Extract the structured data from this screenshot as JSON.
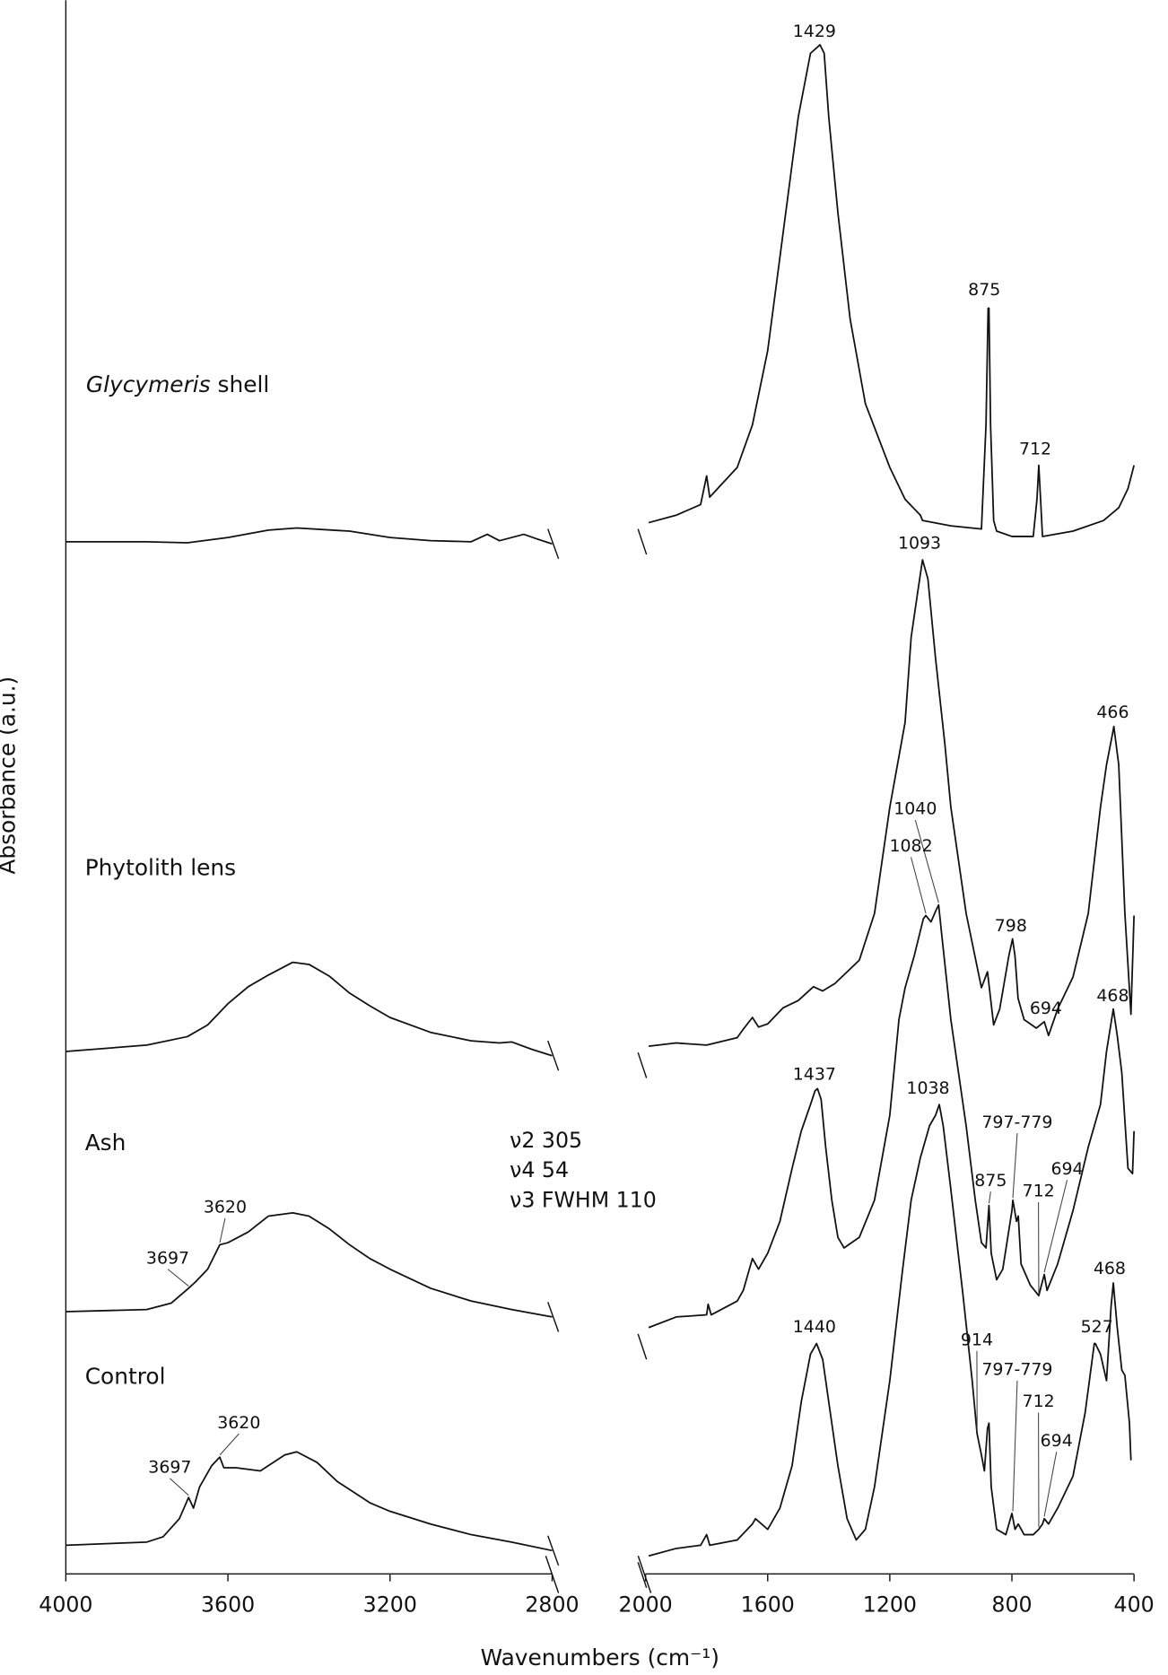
{
  "chart_data": {
    "type": "line",
    "xlabel": "Wavenumbers (cm⁻¹)",
    "ylabel": "Absorbance (a.u.)",
    "xlim": [
      4000,
      400
    ],
    "xbreak": [
      2800,
      2000
    ],
    "xticks": [
      4000,
      3600,
      3200,
      2800,
      2000,
      1600,
      1200,
      800,
      400
    ],
    "ylim": [
      0,
      148.2
    ],
    "notes": [
      "ν2 305",
      "ν4 54",
      "ν3 FWHM 110"
    ],
    "series": [
      {
        "name": "Glycymeris shell",
        "color": "#111111",
        "x": [
          4000,
          3800,
          3700,
          3600,
          3500,
          3430,
          3300,
          3200,
          3100,
          3000,
          2960,
          2930,
          2870,
          2840,
          2800,
          null,
          1990,
          1900,
          1820,
          1800,
          1790,
          1700,
          1650,
          1600,
          1550,
          1500,
          1460,
          1440,
          1429,
          1415,
          1400,
          1370,
          1330,
          1280,
          1200,
          1150,
          1100,
          1093,
          1000,
          900,
          885,
          878,
          875,
          870,
          860,
          850,
          800,
          730,
          718,
          712,
          706,
          700,
          600,
          500,
          450,
          420,
          400
        ],
        "values": [
          97.2,
          97.2,
          97.1,
          97.6,
          98.3,
          98.5,
          98.2,
          97.6,
          97.3,
          97.2,
          97.9,
          97.3,
          97.9,
          97.5,
          97.0,
          null,
          99.0,
          99.7,
          100.7,
          103.4,
          101.4,
          104.2,
          108.2,
          115.2,
          126.2,
          137.2,
          143.2,
          143.7,
          144.0,
          143.2,
          137.2,
          128.2,
          118.2,
          110.2,
          104.2,
          101.2,
          99.7,
          99.2,
          98.7,
          98.4,
          108.2,
          119.2,
          119.2,
          108.2,
          99.2,
          98.2,
          97.7,
          97.7,
          101.2,
          104.4,
          101.2,
          97.7,
          98.2,
          99.2,
          100.4,
          102.2,
          104.4
        ]
      },
      {
        "name": "Phytolith lens",
        "color": "#111111",
        "x": [
          4000,
          3800,
          3700,
          3650,
          3600,
          3550,
          3500,
          3440,
          3400,
          3350,
          3300,
          3250,
          3200,
          3100,
          3000,
          2930,
          2900,
          2850,
          2800,
          null,
          1990,
          1900,
          1800,
          1700,
          1680,
          1650,
          1630,
          1600,
          1550,
          1500,
          1450,
          1420,
          1380,
          1300,
          1250,
          1200,
          1150,
          1130,
          1110,
          1093,
          1075,
          1050,
          1020,
          1000,
          950,
          900,
          880,
          860,
          840,
          810,
          798,
          790,
          780,
          760,
          720,
          694,
          680,
          650,
          600,
          550,
          510,
          490,
          470,
          466,
          450,
          430,
          410,
          400
        ],
        "values": [
          49.2,
          49.8,
          50.6,
          51.7,
          53.7,
          55.3,
          56.4,
          57.6,
          57.4,
          56.3,
          54.7,
          53.5,
          52.4,
          51.0,
          50.2,
          50.0,
          50.1,
          49.4,
          48.8,
          null,
          49.7,
          50.0,
          49.8,
          50.5,
          51.3,
          52.4,
          51.5,
          51.8,
          53.3,
          54.0,
          55.3,
          54.9,
          55.6,
          57.8,
          62.2,
          72.2,
          80.2,
          88.2,
          92.2,
          95.5,
          93.7,
          86.2,
          78.2,
          72.2,
          62.2,
          55.2,
          56.7,
          51.7,
          53.2,
          58.2,
          59.8,
          58.2,
          54.2,
          52.2,
          51.4,
          52.0,
          50.7,
          53.2,
          56.2,
          62.2,
          72.2,
          76.2,
          79.2,
          79.8,
          76.2,
          62.2,
          52.7,
          62.0
        ]
      },
      {
        "name": "Ash",
        "color": "#111111",
        "x": [
          4000,
          3800,
          3740,
          3697,
          3680,
          3650,
          3620,
          3600,
          3550,
          3500,
          3440,
          3400,
          3350,
          3300,
          3250,
          3200,
          3100,
          3000,
          2900,
          2800,
          null,
          1990,
          1900,
          1800,
          1795,
          1785,
          1700,
          1680,
          1650,
          1630,
          1600,
          1560,
          1520,
          1490,
          1460,
          1445,
          1437,
          1425,
          1410,
          1390,
          1370,
          1350,
          1300,
          1250,
          1200,
          1170,
          1150,
          1120,
          1090,
          1082,
          1065,
          1050,
          1040,
          1030,
          1000,
          950,
          920,
          900,
          885,
          875,
          868,
          850,
          830,
          800,
          797,
          785,
          779,
          770,
          740,
          712,
          705,
          694,
          685,
          650,
          600,
          550,
          510,
          490,
          468,
          455,
          440,
          420,
          405,
          400
        ],
        "values": [
          24.7,
          24.9,
          25.5,
          26.9,
          27.5,
          28.7,
          31.0,
          31.2,
          32.2,
          33.7,
          34.0,
          33.7,
          32.5,
          31.0,
          29.7,
          28.7,
          26.9,
          25.7,
          24.9,
          24.2,
          null,
          23.2,
          24.2,
          24.4,
          25.4,
          24.4,
          25.7,
          26.7,
          29.7,
          28.7,
          30.2,
          33.2,
          38.2,
          41.7,
          44.2,
          45.5,
          45.7,
          44.7,
          40.2,
          35.2,
          31.7,
          30.7,
          31.7,
          35.2,
          43.2,
          52.2,
          55.2,
          58.2,
          61.7,
          62.0,
          61.4,
          62.4,
          63.0,
          60.2,
          52.2,
          42.2,
          35.2,
          31.2,
          30.7,
          34.7,
          30.2,
          27.7,
          28.7,
          34.2,
          35.2,
          33.2,
          33.7,
          29.2,
          27.2,
          26.2,
          27.0,
          28.2,
          26.7,
          29.2,
          34.2,
          40.2,
          44.2,
          49.2,
          53.2,
          50.7,
          47.2,
          38.2,
          37.7,
          41.7
        ]
      },
      {
        "name": "Control",
        "color": "#111111",
        "x": [
          4000,
          3800,
          3760,
          3720,
          3697,
          3685,
          3670,
          3640,
          3620,
          3610,
          3580,
          3520,
          3460,
          3430,
          3380,
          3330,
          3250,
          3200,
          3100,
          3000,
          2900,
          2800,
          null,
          1990,
          1900,
          1820,
          1800,
          1790,
          1700,
          1650,
          1640,
          1600,
          1560,
          1520,
          1490,
          1460,
          1440,
          1420,
          1400,
          1370,
          1340,
          1310,
          1280,
          1250,
          1200,
          1160,
          1130,
          1100,
          1070,
          1050,
          1038,
          1025,
          1000,
          960,
          930,
          914,
          900,
          890,
          880,
          875,
          868,
          850,
          820,
          800,
          790,
          779,
          760,
          730,
          712,
          700,
          694,
          680,
          650,
          600,
          560,
          530,
          527,
          510,
          490,
          475,
          468,
          455,
          440,
          430,
          415,
          410
        ],
        "values": [
          2.7,
          3.0,
          3.5,
          5.2,
          7.2,
          6.2,
          8.2,
          10.2,
          11.0,
          10.0,
          10.0,
          9.7,
          11.2,
          11.5,
          10.5,
          8.7,
          6.7,
          5.9,
          4.7,
          3.7,
          3.0,
          2.2,
          null,
          1.7,
          2.4,
          2.7,
          3.7,
          2.7,
          3.2,
          4.7,
          5.2,
          4.2,
          6.2,
          10.2,
          16.2,
          20.7,
          21.7,
          20.2,
          16.2,
          10.2,
          5.2,
          3.2,
          4.2,
          8.2,
          18.2,
          28.2,
          35.2,
          39.2,
          42.2,
          43.2,
          44.2,
          42.2,
          36.2,
          26.2,
          18.2,
          13.2,
          11.2,
          9.7,
          13.7,
          14.2,
          8.2,
          4.2,
          3.7,
          5.7,
          4.2,
          4.7,
          3.7,
          3.7,
          4.2,
          4.7,
          5.2,
          4.7,
          6.2,
          9.2,
          15.2,
          21.7,
          21.7,
          20.7,
          18.2,
          25.2,
          27.4,
          23.2,
          19.2,
          18.7,
          14.2,
          10.7
        ]
      }
    ],
    "annotations": [
      {
        "label": "1429",
        "x": 1429,
        "y": 144.0
      },
      {
        "label": "875",
        "x": 875,
        "y": 119.2
      },
      {
        "label": "712",
        "x": 712,
        "y": 104.4
      },
      {
        "label": "1093",
        "x": 1093,
        "y": 95.5
      },
      {
        "label": "466",
        "x": 466,
        "y": 79.8
      },
      {
        "label": "1040",
        "x": 1040,
        "y": 63.0
      },
      {
        "label": "1082",
        "x": 1082,
        "y": 62.0
      },
      {
        "label": "798",
        "x": 798,
        "y": 59.8
      },
      {
        "label": "694",
        "x": 694,
        "y": 52.0
      },
      {
        "label": "468",
        "x": 468,
        "y": 53.2
      },
      {
        "label": "1437",
        "x": 1437,
        "y": 45.7
      },
      {
        "label": "1038",
        "x": 1038,
        "y": 44.2
      },
      {
        "label": "797-779",
        "x": 797,
        "y": 35.2
      },
      {
        "label": "875",
        "x": 875,
        "y": 34.7
      },
      {
        "label": "712",
        "x": 712,
        "y": 26.2
      },
      {
        "label": "694",
        "x": 694,
        "y": 28.2
      },
      {
        "label": "3620",
        "x": 3620,
        "y": 31.0
      },
      {
        "label": "3697",
        "x": 3697,
        "y": 26.9
      },
      {
        "label": "468",
        "x": 468,
        "y": 27.4
      },
      {
        "label": "527",
        "x": 527,
        "y": 21.7
      },
      {
        "label": "1440",
        "x": 1440,
        "y": 21.7
      },
      {
        "label": "914",
        "x": 914,
        "y": 13.2
      },
      {
        "label": "797-779",
        "x": 797,
        "y": 5.7
      },
      {
        "label": "712",
        "x": 712,
        "y": 4.2
      },
      {
        "label": "694",
        "x": 694,
        "y": 5.2
      },
      {
        "label": "3620",
        "x": 3620,
        "y": 11.0
      },
      {
        "label": "3697",
        "x": 3697,
        "y": 7.2
      }
    ]
  }
}
